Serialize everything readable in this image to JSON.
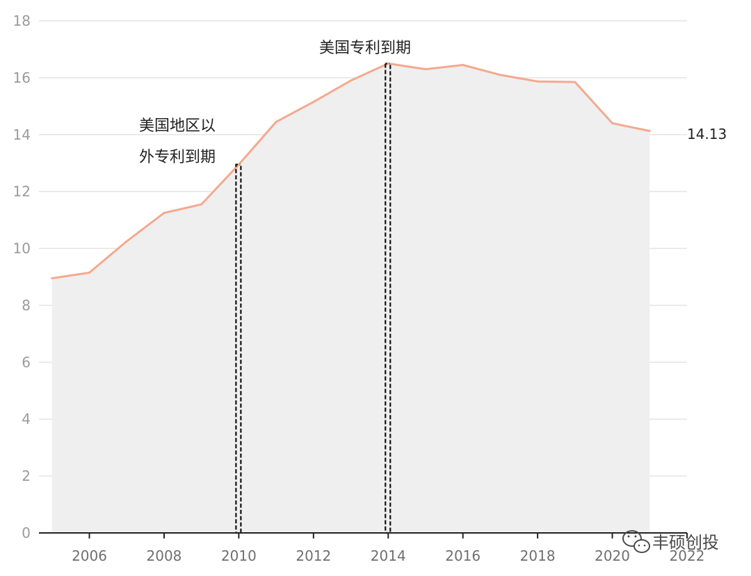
{
  "chart_data": {
    "type": "area",
    "x": [
      2005,
      2006,
      2007,
      2008,
      2009,
      2010,
      2011,
      2012,
      2013,
      2014,
      2015,
      2016,
      2017,
      2018,
      2019,
      2020,
      2021
    ],
    "series": [
      {
        "values": [
          8.95,
          9.15,
          10.25,
          11.25,
          11.55,
          12.95,
          14.45,
          15.15,
          15.9,
          16.5,
          16.3,
          16.45,
          16.1,
          15.87,
          15.85,
          14.4,
          14.13
        ]
      }
    ],
    "xticks": [
      "2006",
      "2008",
      "2010",
      "2012",
      "2014",
      "2016",
      "2018",
      "2020",
      "2022"
    ],
    "yticks": [
      "0",
      "2",
      "4",
      "6",
      "8",
      "10",
      "12",
      "14",
      "16",
      "18"
    ],
    "xlim": [
      2004.65,
      2022.0
    ],
    "ylim": [
      0,
      18
    ],
    "grid": true,
    "line_color": "#f4a98e",
    "fill_color": "#efefef",
    "end_label": "14.13",
    "annotations": [
      {
        "x": 2010,
        "lines": [
          "美国地区以",
          "外专利到期"
        ]
      },
      {
        "x": 2014,
        "lines": [
          "美国专利到期"
        ]
      }
    ]
  },
  "watermark": {
    "icon": "wechat-icon",
    "text": "丰硕创投"
  }
}
